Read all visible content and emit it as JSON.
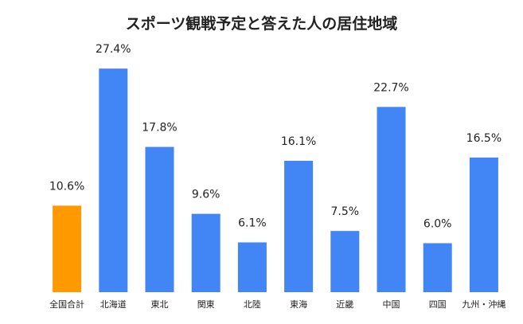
{
  "chart_data": {
    "type": "bar",
    "title": "スポーツ観戦予定と答えた人の居住地域",
    "xlabel": "",
    "ylabel": "",
    "categories": [
      "全国合計",
      "北海道",
      "東北",
      "関東",
      "北陸",
      "東海",
      "近畿",
      "中国",
      "四国",
      "九州・沖縄"
    ],
    "values": [
      10.6,
      27.4,
      17.8,
      9.6,
      6.1,
      16.1,
      7.5,
      22.7,
      6.0,
      16.5
    ],
    "value_labels": [
      "10.6%",
      "27.4%",
      "17.8%",
      "9.6%",
      "6.1%",
      "16.1%",
      "7.5%",
      "22.7%",
      "6.0%",
      "16.5%"
    ],
    "ylim": [
      0,
      28
    ],
    "grid": false,
    "legend": "none",
    "colors": {
      "highlight": "#FF9900",
      "default": "#4285F4"
    },
    "highlight_index": 0
  }
}
